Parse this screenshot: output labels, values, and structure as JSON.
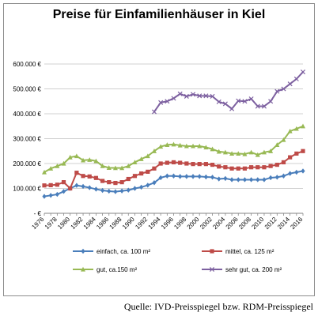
{
  "chart_data": {
    "type": "line",
    "title": "Preise für Einfamilienhäuser in Kiel",
    "source": "Quelle: IVD-Preisspiegel bzw. RDM-Preisspiegel",
    "x": [
      1976,
      1977,
      1978,
      1979,
      1980,
      1981,
      1982,
      1983,
      1984,
      1985,
      1986,
      1987,
      1988,
      1989,
      1990,
      1991,
      1992,
      1993,
      1994,
      1995,
      1996,
      1997,
      1998,
      1999,
      2000,
      2001,
      2002,
      2003,
      2004,
      2005,
      2006,
      2007,
      2008,
      2009,
      2010,
      2011,
      2012,
      2013,
      2014,
      2015,
      2016
    ],
    "x_tick_labels": [
      "1976",
      "1978",
      "1980",
      "1982",
      "1984",
      "1986",
      "1988",
      "1990",
      "1992",
      "1994",
      "1996",
      "1998",
      "2000",
      "2002",
      "2004",
      "2006",
      "2008",
      "2010",
      "2012",
      "2014",
      "2016"
    ],
    "ylim": [
      0,
      600000
    ],
    "y_ticks": [
      0,
      100000,
      200000,
      300000,
      400000,
      500000,
      600000
    ],
    "y_tick_labels": [
      "- €",
      "100.000 €",
      "200.000 €",
      "300.000 €",
      "400.000 €",
      "500.000 €",
      "600.000 €"
    ],
    "grid": true,
    "legend_position": "bottom",
    "series": [
      {
        "name": "einfach, ca. 100 m²",
        "color": "#4a7ebb",
        "marker": "diamond",
        "values": [
          68000,
          72000,
          76000,
          88000,
          100000,
          112000,
          108000,
          103000,
          97000,
          92000,
          89000,
          87000,
          90000,
          93000,
          100000,
          105000,
          113000,
          123000,
          143000,
          150000,
          150000,
          148000,
          148000,
          148000,
          148000,
          146000,
          145000,
          138000,
          140000,
          135000,
          135000,
          135000,
          135000,
          135000,
          135000,
          143000,
          145000,
          150000,
          160000,
          165000,
          170000
        ]
      },
      {
        "name": "mittel, ca. 125 m²",
        "color": "#be4b48",
        "marker": "square",
        "values": [
          112000,
          113000,
          115000,
          125000,
          100000,
          163000,
          150000,
          148000,
          142000,
          130000,
          125000,
          122000,
          125000,
          138000,
          150000,
          160000,
          167000,
          180000,
          200000,
          203000,
          205000,
          203000,
          200000,
          198000,
          198000,
          198000,
          195000,
          188000,
          185000,
          180000,
          180000,
          180000,
          185000,
          185000,
          185000,
          190000,
          195000,
          205000,
          225000,
          240000,
          250000
        ]
      },
      {
        "name": "gut, ca.150 m²",
        "color": "#98b954",
        "marker": "triangle",
        "values": [
          165000,
          180000,
          190000,
          200000,
          225000,
          230000,
          213000,
          215000,
          210000,
          190000,
          183000,
          182000,
          182000,
          190000,
          205000,
          218000,
          230000,
          250000,
          268000,
          275000,
          277000,
          273000,
          270000,
          270000,
          270000,
          265000,
          258000,
          248000,
          245000,
          240000,
          240000,
          238000,
          245000,
          235000,
          245000,
          250000,
          275000,
          295000,
          330000,
          340000,
          350000
        ]
      },
      {
        "name": "sehr gut, ca. 200 m²",
        "color": "#7d60a0",
        "marker": "x",
        "values": [
          null,
          null,
          null,
          null,
          null,
          null,
          null,
          null,
          null,
          null,
          null,
          null,
          null,
          null,
          null,
          null,
          null,
          408000,
          445000,
          450000,
          462000,
          480000,
          470000,
          478000,
          472000,
          472000,
          470000,
          448000,
          440000,
          420000,
          452000,
          450000,
          460000,
          430000,
          430000,
          450000,
          490000,
          500000,
          520000,
          540000,
          568000
        ]
      }
    ]
  }
}
